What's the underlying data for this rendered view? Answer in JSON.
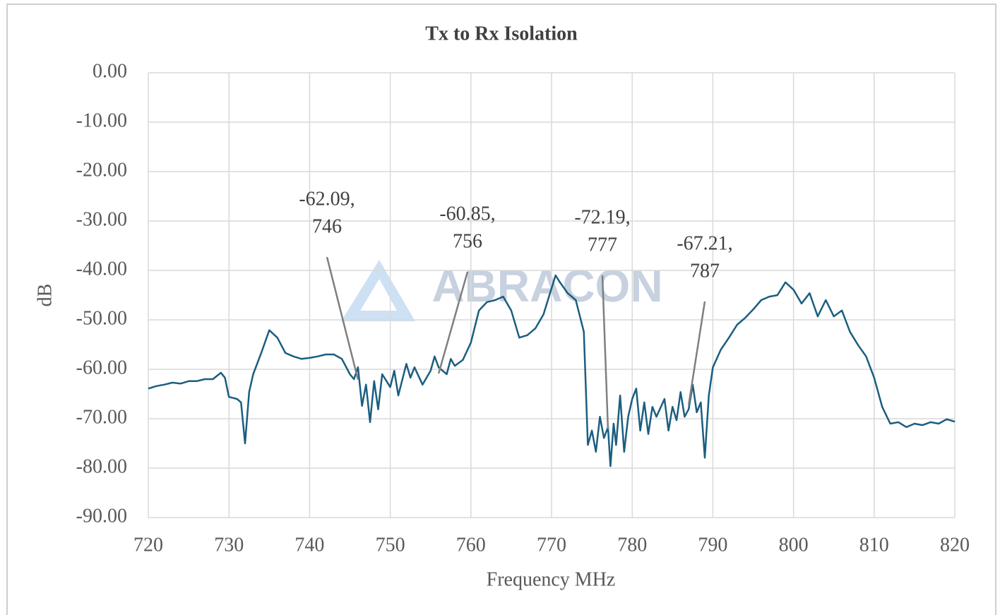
{
  "chart_data": {
    "type": "line",
    "title": "Tx to Rx Isolation",
    "x_label": "Frequency MHz",
    "y_label": "dB",
    "watermark": "ABRACON",
    "xlim": [
      720,
      820
    ],
    "xticks": [
      720,
      730,
      740,
      750,
      760,
      770,
      780,
      790,
      800,
      810,
      820
    ],
    "ylim": [
      -90,
      0
    ],
    "yticks": [
      {
        "value": 0,
        "label": "0.00"
      },
      {
        "value": -10,
        "label": "-10.00"
      },
      {
        "value": -20,
        "label": "-20.00"
      },
      {
        "value": -30,
        "label": "-30.00"
      },
      {
        "value": -40,
        "label": "-40.00"
      },
      {
        "value": -50,
        "label": "-50.00"
      },
      {
        "value": -60,
        "label": "-60.00"
      },
      {
        "value": -70,
        "label": "-70.00"
      },
      {
        "value": -80,
        "label": "-80.00"
      },
      {
        "value": -90,
        "label": "-90.00"
      }
    ],
    "grid": true,
    "series": [
      {
        "color": "#1b5e80",
        "x": [
          720,
          721,
          722,
          723,
          724,
          725,
          726,
          727,
          728,
          729,
          729.5,
          730,
          731,
          731.5,
          732,
          732.5,
          733,
          734,
          735,
          736,
          737,
          738,
          739,
          740,
          741,
          742,
          743,
          744,
          745,
          745.5,
          746,
          746.5,
          747,
          747.5,
          748,
          748.5,
          749,
          750,
          750.5,
          751,
          752,
          752.5,
          753,
          754,
          755,
          755.5,
          756,
          757,
          757.5,
          758,
          759,
          760,
          761,
          762,
          763,
          764,
          765,
          766,
          767,
          768,
          769,
          770,
          770.5,
          771,
          772,
          773,
          774,
          774.5,
          775,
          775.5,
          776,
          776.5,
          777,
          777.3,
          777.7,
          778,
          778.5,
          779,
          779.5,
          780,
          780.5,
          781,
          781.5,
          782,
          782.5,
          783,
          784,
          784.5,
          785,
          785.5,
          786,
          786.5,
          787,
          787.5,
          788,
          788.5,
          789,
          789.5,
          790,
          791,
          792,
          793,
          794,
          795,
          796,
          797,
          798,
          799,
          800,
          801,
          802,
          803,
          804,
          805,
          806,
          807,
          808,
          809,
          810,
          811,
          812,
          813,
          814,
          815,
          816,
          817,
          818,
          819,
          820
        ],
        "values": [
          -63.9,
          -63.4,
          -63.1,
          -62.7,
          -62.9,
          -62.4,
          -62.4,
          -62,
          -62,
          -60.7,
          -61.7,
          -65.6,
          -66,
          -66.7,
          -75,
          -64.6,
          -61,
          -56.7,
          -52.1,
          -53.6,
          -56.7,
          -57.4,
          -57.9,
          -57.7,
          -57.4,
          -57,
          -57,
          -57.9,
          -61,
          -62,
          -59.6,
          -67.4,
          -63.1,
          -70.7,
          -62.4,
          -68.1,
          -61,
          -63.6,
          -60.3,
          -65.3,
          -58.9,
          -61.7,
          -59.6,
          -63.1,
          -60.3,
          -57.4,
          -59.6,
          -61,
          -57.9,
          -59.3,
          -58.1,
          -54.6,
          -48.1,
          -46.4,
          -46,
          -45.3,
          -48.1,
          -53.6,
          -53.1,
          -51.7,
          -48.9,
          -43.6,
          -41,
          -42.3,
          -44.6,
          -46,
          -52.4,
          -75.3,
          -72.4,
          -76.7,
          -69.6,
          -73.9,
          -71.7,
          -79.6,
          -71,
          -75.3,
          -65.3,
          -76.7,
          -69.6,
          -66,
          -63.9,
          -72.4,
          -66.7,
          -73.1,
          -67.6,
          -69.6,
          -66,
          -72.4,
          -67.6,
          -70.3,
          -64.6,
          -69.6,
          -68.1,
          -63.1,
          -68.7,
          -66.7,
          -77.9,
          -65.3,
          -59.6,
          -56,
          -53.6,
          -51,
          -49.6,
          -47.9,
          -46,
          -45.3,
          -45,
          -42.4,
          -43.9,
          -46.7,
          -44.6,
          -49.3,
          -46,
          -49.3,
          -48.1,
          -52.4,
          -55.1,
          -57.4,
          -61.7,
          -67.6,
          -71,
          -70.7,
          -71.7,
          -71,
          -71.3,
          -70.7,
          -71,
          -70.1,
          -70.6
        ]
      }
    ],
    "annotations": [
      {
        "lines": [
          "-62.09,",
          "746"
        ],
        "x": 746,
        "y": -62.09
      },
      {
        "lines": [
          "-60.85,",
          "756"
        ],
        "x": 756,
        "y": -60.85
      },
      {
        "lines": [
          "-72.19,",
          "777"
        ],
        "x": 777,
        "y": -72.19
      },
      {
        "lines": [
          "-67.21,",
          "787"
        ],
        "x": 787,
        "y": -67.21
      }
    ]
  }
}
